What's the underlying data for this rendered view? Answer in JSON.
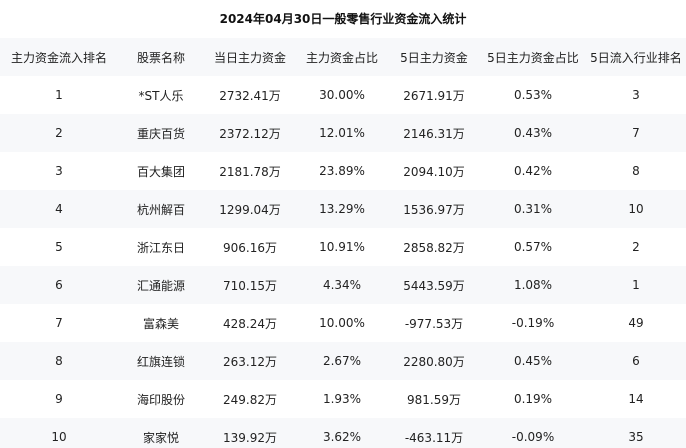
{
  "title": "2024年04月30日一般零售行业资金流入统计",
  "headers": [
    "主力资金流入排名",
    "股票名称",
    "当日主力资金",
    "主力资金占比",
    "5日主力资金",
    "5日主力资金占比",
    "5日流入行业排名"
  ],
  "rows": [
    [
      "1",
      "*ST人乐",
      "2732.41万",
      "30.00%",
      "2671.91万",
      "0.53%",
      "3"
    ],
    [
      "2",
      "重庆百货",
      "2372.12万",
      "12.01%",
      "2146.31万",
      "0.43%",
      "7"
    ],
    [
      "3",
      "百大集团",
      "2181.78万",
      "23.89%",
      "2094.10万",
      "0.42%",
      "8"
    ],
    [
      "4",
      "杭州解百",
      "1299.04万",
      "13.29%",
      "1536.97万",
      "0.31%",
      "10"
    ],
    [
      "5",
      "浙江东日",
      "906.16万",
      "10.91%",
      "2858.82万",
      "0.57%",
      "2"
    ],
    [
      "6",
      "汇通能源",
      "710.15万",
      "4.34%",
      "5443.59万",
      "1.08%",
      "1"
    ],
    [
      "7",
      "富森美",
      "428.24万",
      "10.00%",
      "-977.53万",
      "-0.19%",
      "49"
    ],
    [
      "8",
      "红旗连锁",
      "263.12万",
      "2.67%",
      "2280.80万",
      "0.45%",
      "6"
    ],
    [
      "9",
      "海印股份",
      "249.82万",
      "1.93%",
      "981.59万",
      "0.19%",
      "14"
    ],
    [
      "10",
      "家家悦",
      "139.92万",
      "3.62%",
      "-463.11万",
      "-0.09%",
      "35"
    ]
  ]
}
